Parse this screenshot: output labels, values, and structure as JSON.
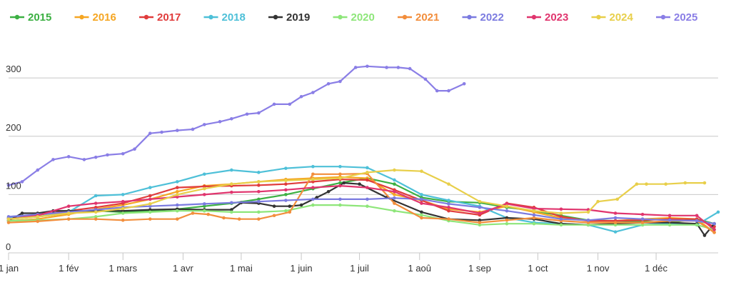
{
  "chart_data": {
    "type": "line",
    "title": "",
    "xlabel": "",
    "ylabel": "",
    "x_unit": "day_of_year",
    "xlim": [
      1,
      367
    ],
    "ylim": [
      0,
      370
    ],
    "grid": true,
    "legend_position": "top",
    "y_ticks": [
      {
        "value": 0,
        "label": "0"
      },
      {
        "value": 100,
        "label": "100"
      },
      {
        "value": 200,
        "label": "200"
      },
      {
        "value": 300,
        "label": "300"
      }
    ],
    "x_ticks": [
      {
        "value": 1,
        "label": "1 jan"
      },
      {
        "value": 32,
        "label": "1 fév"
      },
      {
        "value": 60,
        "label": "1 mars"
      },
      {
        "value": 91,
        "label": "1 avr"
      },
      {
        "value": 121,
        "label": "1 mai"
      },
      {
        "value": 152,
        "label": "1 juin"
      },
      {
        "value": 182,
        "label": "1 juil"
      },
      {
        "value": 213,
        "label": "1 aoû"
      },
      {
        "value": 244,
        "label": "1 sep"
      },
      {
        "value": 274,
        "label": "1 oct"
      },
      {
        "value": 305,
        "label": "1 nov"
      },
      {
        "value": 335,
        "label": "1 déc"
      }
    ],
    "series": [
      {
        "name": "2015",
        "color": "#3cb043",
        "x": [
          1,
          16,
          32,
          46,
          60,
          74,
          88,
          102,
          116,
          130,
          144,
          158,
          172,
          186,
          200,
          214,
          228,
          244,
          258,
          272,
          286,
          300,
          314,
          328,
          342,
          356,
          365
        ],
        "y": [
          58,
          62,
          68,
          72,
          70,
          72,
          75,
          80,
          85,
          92,
          100,
          110,
          120,
          128,
          118,
          95,
          88,
          86,
          78,
          72,
          64,
          56,
          55,
          54,
          52,
          58,
          50
        ]
      },
      {
        "name": "2016",
        "color": "#f5a623",
        "x": [
          1,
          16,
          32,
          46,
          60,
          74,
          88,
          102,
          116,
          130,
          144,
          158,
          172,
          186,
          200,
          214,
          228,
          244,
          258,
          272,
          286,
          300,
          314,
          328,
          342,
          356,
          365
        ],
        "y": [
          55,
          58,
          66,
          75,
          82,
          92,
          105,
          115,
          118,
          122,
          126,
          128,
          130,
          128,
          100,
          90,
          75,
          70,
          80,
          70,
          60,
          55,
          55,
          58,
          60,
          58,
          35
        ]
      },
      {
        "name": "2017",
        "color": "#e03c3c",
        "x": [
          1,
          16,
          32,
          46,
          60,
          74,
          88,
          102,
          116,
          130,
          144,
          158,
          172,
          186,
          200,
          214,
          228,
          244,
          258,
          272,
          286,
          300,
          314,
          328,
          342,
          356,
          365
        ],
        "y": [
          60,
          65,
          72,
          78,
          85,
          98,
          112,
          114,
          115,
          116,
          118,
          122,
          126,
          125,
          108,
          90,
          72,
          65,
          85,
          78,
          62,
          55,
          55,
          56,
          58,
          58,
          45
        ]
      },
      {
        "name": "2018",
        "color": "#4ec0d8",
        "x": [
          1,
          16,
          32,
          46,
          60,
          74,
          88,
          102,
          116,
          130,
          144,
          158,
          172,
          186,
          200,
          214,
          228,
          244,
          258,
          272,
          286,
          300,
          314,
          328,
          342,
          356,
          367
        ],
        "y": [
          60,
          62,
          70,
          98,
          100,
          112,
          122,
          135,
          142,
          138,
          145,
          148,
          148,
          146,
          125,
          100,
          90,
          80,
          60,
          52,
          50,
          48,
          36,
          48,
          50,
          48,
          70
        ]
      },
      {
        "name": "2019",
        "color": "#333333",
        "x": [
          1,
          8,
          16,
          24,
          32,
          46,
          60,
          74,
          88,
          102,
          116,
          121,
          130,
          138,
          146,
          152,
          160,
          166,
          174,
          182,
          196,
          214,
          228,
          244,
          258,
          272,
          286,
          300,
          314,
          328,
          342,
          356,
          360,
          365
        ],
        "y": [
          55,
          68,
          68,
          72,
          72,
          72,
          72,
          74,
          75,
          74,
          74,
          86,
          85,
          80,
          80,
          82,
          95,
          105,
          120,
          118,
          95,
          70,
          58,
          56,
          60,
          58,
          50,
          48,
          50,
          52,
          52,
          50,
          30,
          50
        ]
      },
      {
        "name": "2020",
        "color": "#8ee67a",
        "x": [
          1,
          16,
          32,
          46,
          60,
          74,
          88,
          102,
          116,
          130,
          144,
          158,
          172,
          186,
          200,
          214,
          228,
          244,
          258,
          272,
          286,
          300,
          314,
          328,
          342,
          356,
          365
        ],
        "y": [
          55,
          56,
          58,
          62,
          68,
          70,
          72,
          72,
          70,
          70,
          72,
          82,
          82,
          80,
          72,
          65,
          55,
          48,
          50,
          50,
          48,
          48,
          48,
          48,
          48,
          48,
          40
        ]
      },
      {
        "name": "2021",
        "color": "#f28e3c",
        "x": [
          1,
          16,
          32,
          46,
          60,
          74,
          88,
          96,
          104,
          112,
          120,
          130,
          138,
          146,
          158,
          172,
          186,
          200,
          214,
          228,
          244,
          258,
          272,
          286,
          300,
          314,
          328,
          342,
          356,
          365
        ],
        "y": [
          52,
          54,
          58,
          58,
          56,
          58,
          58,
          68,
          66,
          60,
          58,
          58,
          64,
          70,
          135,
          135,
          136,
          85,
          60,
          58,
          52,
          56,
          60,
          55,
          52,
          52,
          52,
          55,
          55,
          35
        ]
      },
      {
        "name": "2022",
        "color": "#7b7be0",
        "x": [
          1,
          16,
          32,
          46,
          60,
          74,
          88,
          102,
          116,
          130,
          144,
          158,
          172,
          186,
          200,
          214,
          228,
          244,
          258,
          272,
          286,
          300,
          314,
          328,
          342,
          356,
          365
        ],
        "y": [
          62,
          66,
          70,
          74,
          78,
          80,
          82,
          84,
          86,
          88,
          90,
          92,
          92,
          92,
          94,
          92,
          84,
          78,
          72,
          65,
          58,
          56,
          60,
          58,
          56,
          55,
          50
        ]
      },
      {
        "name": "2023",
        "color": "#e0356e",
        "x": [
          1,
          16,
          32,
          46,
          60,
          74,
          88,
          102,
          116,
          130,
          144,
          158,
          172,
          186,
          200,
          214,
          228,
          244,
          258,
          272,
          286,
          300,
          314,
          328,
          342,
          356,
          365
        ],
        "y": [
          58,
          64,
          80,
          85,
          88,
          92,
          96,
          100,
          104,
          105,
          108,
          112,
          115,
          112,
          105,
          85,
          78,
          68,
          84,
          76,
          75,
          74,
          68,
          66,
          64,
          64,
          40
        ]
      },
      {
        "name": "2024",
        "color": "#e8cf4a",
        "x": [
          1,
          16,
          32,
          46,
          60,
          74,
          88,
          102,
          116,
          130,
          144,
          158,
          172,
          186,
          200,
          214,
          228,
          244,
          258,
          272,
          286,
          300,
          305,
          315,
          325,
          330,
          340,
          350,
          360
        ],
        "y": [
          58,
          62,
          68,
          70,
          76,
          84,
          100,
          110,
          118,
          122,
          124,
          126,
          128,
          138,
          142,
          140,
          118,
          88,
          80,
          72,
          68,
          70,
          88,
          92,
          118,
          118,
          118,
          120,
          120
        ]
      },
      {
        "name": "2025",
        "color": "#8a7ee6",
        "x": [
          1,
          8,
          16,
          24,
          32,
          40,
          46,
          52,
          60,
          66,
          74,
          80,
          88,
          96,
          102,
          110,
          116,
          124,
          130,
          138,
          146,
          152,
          158,
          166,
          172,
          180,
          186,
          196,
          202,
          208,
          216,
          222,
          228,
          236
        ],
        "y": [
          116,
          122,
          142,
          160,
          165,
          160,
          164,
          168,
          170,
          178,
          205,
          207,
          210,
          212,
          220,
          225,
          230,
          238,
          240,
          255,
          255,
          268,
          275,
          290,
          294,
          318,
          320,
          318,
          318,
          316,
          298,
          278,
          278,
          290
        ]
      }
    ]
  }
}
